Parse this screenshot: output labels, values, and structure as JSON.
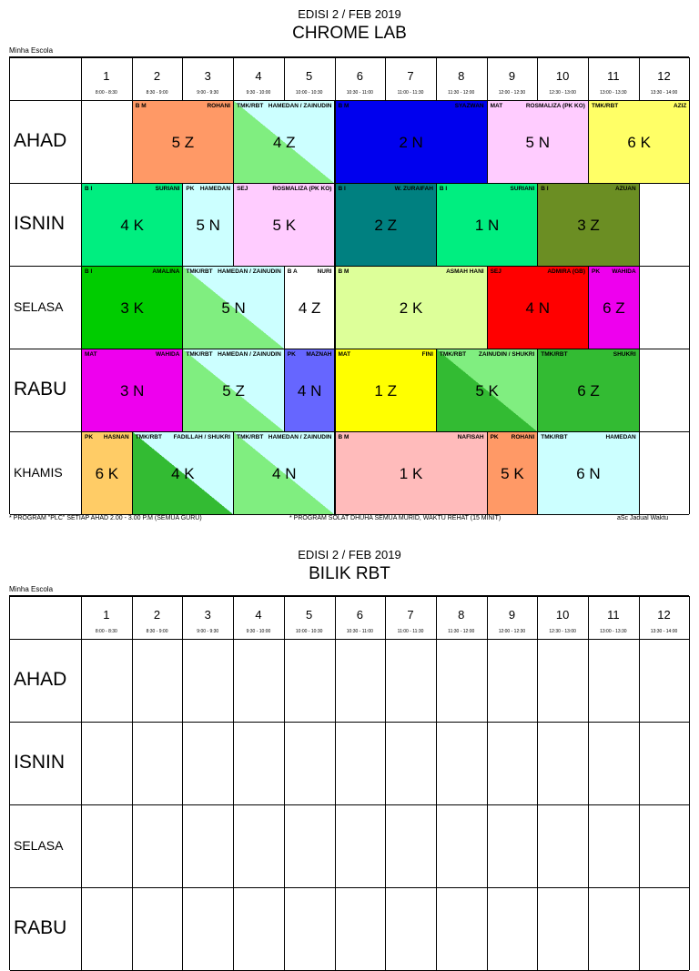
{
  "top": {
    "edition": "EDISI 2 / FEB 2019",
    "title": "CHROME LAB",
    "school": "Minha Escola"
  },
  "periods": [
    {
      "num": "1",
      "time": "8:00 - 8:30"
    },
    {
      "num": "2",
      "time": "8:30 - 9:00"
    },
    {
      "num": "3",
      "time": "9:00 - 9:30"
    },
    {
      "num": "4",
      "time": "9:30 - 10:00"
    },
    {
      "num": "5",
      "time": "10:00 - 10:30"
    },
    {
      "num": "6",
      "time": "10:30 - 11:00"
    },
    {
      "num": "7",
      "time": "11:00 - 11:30"
    },
    {
      "num": "8",
      "time": "11:30 - 12:00"
    },
    {
      "num": "9",
      "time": "12:00 - 12:30"
    },
    {
      "num": "10",
      "time": "12:30 - 13:00"
    },
    {
      "num": "11",
      "time": "13:00 - 13:30"
    },
    {
      "num": "12",
      "time": "13:30 - 14:00"
    }
  ],
  "days": [
    "AHAD",
    "ISNIN",
    "SELASA",
    "RABU",
    "KHAMIS"
  ],
  "lessons": [
    {
      "day": 0,
      "start": 2,
      "span": 2,
      "subject": "B M",
      "teacher": "ROHANI",
      "cls": "5 Z",
      "color": "#ff9966"
    },
    {
      "day": 0,
      "start": 4,
      "span": 2,
      "subject": "TMK/RBT",
      "teacher": "HAMEDAN / ZAINUDIN",
      "cls": "4 Z",
      "color": "#ccffff",
      "color2": "#80ee80"
    },
    {
      "day": 0,
      "start": 6,
      "span": 3,
      "subject": "B M",
      "teacher": "SYAZWAN",
      "cls": "2 N",
      "color": "#0000ee"
    },
    {
      "day": 0,
      "start": 9,
      "span": 2,
      "subject": "MAT",
      "teacher": "ROSMALIZA (PK KO)",
      "cls": "5 N",
      "color": "#ffccff"
    },
    {
      "day": 0,
      "start": 11,
      "span": 2,
      "subject": "TMK/RBT",
      "teacher": "AZIZ",
      "cls": "6 K",
      "color": "#ffff66"
    },
    {
      "day": 1,
      "start": 1,
      "span": 2,
      "subject": "B I",
      "teacher": "SURIANI",
      "cls": "4 K",
      "color": "#00ee80"
    },
    {
      "day": 1,
      "start": 3,
      "span": 1,
      "subject": "PK",
      "teacher": "HAMEDAN",
      "cls": "5 N",
      "color": "#ccffff"
    },
    {
      "day": 1,
      "start": 4,
      "span": 2,
      "subject": "SEJ",
      "teacher": "ROSMALIZA (PK KO)",
      "cls": "5 K",
      "color": "#ffccff"
    },
    {
      "day": 1,
      "start": 6,
      "span": 2,
      "subject": "B I",
      "teacher": "W. ZURAIFAH",
      "cls": "2 Z",
      "color": "#008080"
    },
    {
      "day": 1,
      "start": 8,
      "span": 2,
      "subject": "B I",
      "teacher": "SURIANI",
      "cls": "1 N",
      "color": "#00ee80"
    },
    {
      "day": 1,
      "start": 10,
      "span": 2,
      "subject": "B I",
      "teacher": "AZUAN",
      "cls": "3 Z",
      "color": "#6b8e23"
    },
    {
      "day": 2,
      "start": 1,
      "span": 2,
      "subject": "B I",
      "teacher": "AMALINA",
      "cls": "3 K",
      "color": "#00cc00"
    },
    {
      "day": 2,
      "start": 3,
      "span": 2,
      "subject": "TMK/RBT",
      "teacher": "HAMEDAN / ZAINUDIN",
      "cls": "5 N",
      "color": "#ccffff",
      "color2": "#80ee80"
    },
    {
      "day": 2,
      "start": 5,
      "span": 1,
      "subject": "B A",
      "teacher": "NURI",
      "cls": "4 Z",
      "color": "#ffffff"
    },
    {
      "day": 2,
      "start": 6,
      "span": 3,
      "subject": "B M",
      "teacher": "ASMAH HANI",
      "cls": "2 K",
      "color": "#ddff99"
    },
    {
      "day": 2,
      "start": 9,
      "span": 2,
      "subject": "SEJ",
      "teacher": "ADMIRA (GB)",
      "cls": "4 N",
      "color": "#ff0000"
    },
    {
      "day": 2,
      "start": 11,
      "span": 1,
      "subject": "PK",
      "teacher": "WAHIDA",
      "cls": "6 Z",
      "color": "#ee00ee"
    },
    {
      "day": 3,
      "start": 1,
      "span": 2,
      "subject": "MAT",
      "teacher": "WAHIDA",
      "cls": "3 N",
      "color": "#ee00ee"
    },
    {
      "day": 3,
      "start": 3,
      "span": 2,
      "subject": "TMK/RBT",
      "teacher": "HAMEDAN / ZAINUDIN",
      "cls": "5 Z",
      "color": "#ccffff",
      "color2": "#80ee80"
    },
    {
      "day": 3,
      "start": 5,
      "span": 1,
      "subject": "PK",
      "teacher": "MAZNAH",
      "cls": "4 N",
      "color": "#6666ff"
    },
    {
      "day": 3,
      "start": 6,
      "span": 2,
      "subject": "MAT",
      "teacher": "FINI",
      "cls": "1 Z",
      "color": "#ffff00"
    },
    {
      "day": 3,
      "start": 8,
      "span": 2,
      "subject": "TMK/RBT",
      "teacher": "ZAINUDIN / SHUKRI",
      "cls": "5 K",
      "color": "#80ee80",
      "color2": "#33bb33"
    },
    {
      "day": 3,
      "start": 10,
      "span": 2,
      "subject": "TMK/RBT",
      "teacher": "SHUKRI",
      "cls": "6 Z",
      "color": "#33bb33"
    },
    {
      "day": 4,
      "start": 1,
      "span": 1,
      "subject": "PK",
      "teacher": "HASNAN",
      "cls": "6 K",
      "color": "#ffcc66"
    },
    {
      "day": 4,
      "start": 2,
      "span": 2,
      "subject": "TMK/RBT",
      "teacher": "FADILLAH / SHUKRI",
      "cls": "4 K",
      "color": "#ccffff",
      "color2": "#33bb33"
    },
    {
      "day": 4,
      "start": 4,
      "span": 2,
      "subject": "TMK/RBT",
      "teacher": "HAMEDAN / ZAINUDIN",
      "cls": "4 N",
      "color": "#ccffff",
      "color2": "#80ee80"
    },
    {
      "day": 4,
      "start": 6,
      "span": 3,
      "subject": "B M",
      "teacher": "NAFISAH",
      "cls": "1 K",
      "color": "#ffbbbb"
    },
    {
      "day": 4,
      "start": 9,
      "span": 1,
      "subject": "PK",
      "teacher": "ROHANI",
      "cls": "5 K",
      "color": "#ff9966"
    },
    {
      "day": 4,
      "start": 10,
      "span": 2,
      "subject": "TMK/RBT",
      "teacher": "HAMEDAN",
      "cls": "6 N",
      "color": "#ccffff"
    }
  ],
  "footer": {
    "note1": "* PROGRAM \"PLC\" SETIAP AHAD 2.00 - 3.00  P.M (SEMUA GURU)",
    "note2": "* PROGRAM SOLAT DHUHA SEMUA MURID,  WAKTU REHAT (15 MINIT)",
    "credit": "aSc Jadual Waktu"
  },
  "bottom": {
    "edition": "EDISI 2 / FEB 2019",
    "title": "BILIK RBT",
    "school": "Minha Escola",
    "days": [
      "AHAD",
      "ISNIN",
      "SELASA",
      "RABU"
    ]
  }
}
